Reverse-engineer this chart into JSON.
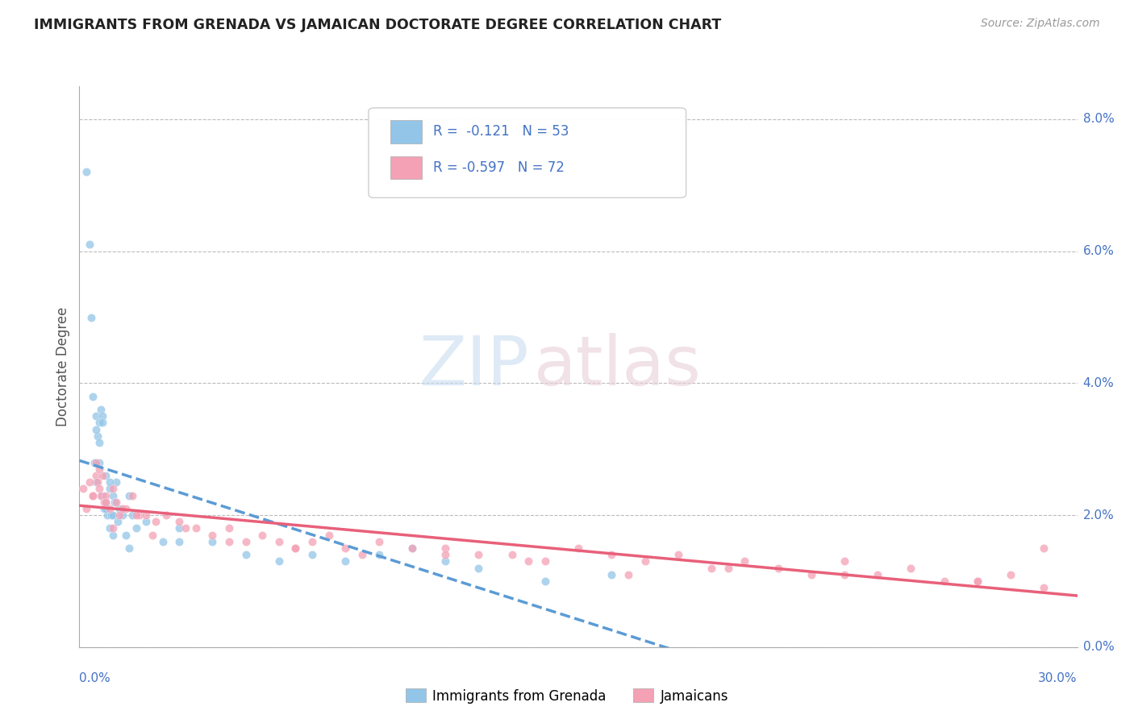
{
  "title": "IMMIGRANTS FROM GRENADA VS JAMAICAN DOCTORATE DEGREE CORRELATION CHART",
  "source": "Source: ZipAtlas.com",
  "ylabel": "Doctorate Degree",
  "color_blue": "#92C5E8",
  "color_pink": "#F4A0B5",
  "line_blue": "#5B9BD5",
  "line_pink": "#E8607A",
  "background_color": "#FFFFFF",
  "xlim": [
    0,
    30
  ],
  "ylim": [
    0,
    8.5
  ],
  "ytick_vals": [
    0.0,
    2.0,
    4.0,
    6.0,
    8.0
  ],
  "ytick_labels": [
    "0.0%",
    "2.0%",
    "4.0%",
    "6.0%",
    "8.0%"
  ],
  "grenada_x": [
    0.2,
    0.3,
    0.35,
    0.4,
    0.45,
    0.5,
    0.5,
    0.55,
    0.6,
    0.6,
    0.65,
    0.7,
    0.7,
    0.75,
    0.8,
    0.8,
    0.85,
    0.9,
    0.9,
    0.95,
    1.0,
    1.0,
    1.05,
    1.1,
    1.15,
    1.2,
    1.3,
    1.4,
    1.5,
    1.6,
    1.7,
    2.0,
    2.5,
    3.0,
    4.0,
    5.0,
    6.0,
    7.0,
    8.0,
    9.0,
    10.0,
    11.0,
    12.0,
    14.0,
    16.0,
    0.5,
    0.6,
    0.7,
    0.8,
    0.9,
    1.0,
    1.5,
    3.0
  ],
  "grenada_y": [
    7.2,
    6.1,
    5.0,
    3.8,
    2.8,
    3.5,
    2.5,
    3.2,
    3.4,
    2.8,
    3.6,
    2.3,
    3.5,
    2.1,
    2.6,
    2.2,
    2.0,
    2.4,
    1.8,
    2.0,
    2.3,
    1.7,
    2.2,
    2.5,
    1.9,
    2.1,
    2.0,
    1.7,
    2.3,
    2.0,
    1.8,
    1.9,
    1.6,
    1.8,
    1.6,
    1.4,
    1.3,
    1.4,
    1.3,
    1.4,
    1.5,
    1.3,
    1.2,
    1.0,
    1.1,
    3.3,
    3.1,
    3.4,
    2.1,
    2.5,
    2.0,
    1.5,
    1.6
  ],
  "jamaican_x": [
    0.1,
    0.2,
    0.3,
    0.4,
    0.5,
    0.5,
    0.55,
    0.6,
    0.65,
    0.7,
    0.75,
    0.8,
    0.9,
    1.0,
    1.1,
    1.2,
    1.4,
    1.6,
    1.8,
    2.0,
    2.3,
    2.6,
    3.0,
    3.5,
    4.0,
    4.5,
    5.0,
    5.5,
    6.0,
    6.5,
    7.0,
    7.5,
    8.0,
    9.0,
    10.0,
    11.0,
    12.0,
    13.0,
    14.0,
    15.0,
    16.0,
    17.0,
    18.0,
    19.0,
    20.0,
    21.0,
    22.0,
    23.0,
    24.0,
    25.0,
    26.0,
    27.0,
    28.0,
    29.0,
    0.4,
    0.6,
    0.8,
    1.0,
    1.3,
    1.7,
    2.2,
    3.2,
    4.5,
    6.5,
    8.5,
    11.0,
    13.5,
    16.5,
    19.5,
    23.0,
    27.0,
    29.0
  ],
  "jamaican_y": [
    2.4,
    2.1,
    2.5,
    2.3,
    2.8,
    2.6,
    2.5,
    2.4,
    2.3,
    2.6,
    2.2,
    2.3,
    2.1,
    2.4,
    2.2,
    2.0,
    2.1,
    2.3,
    2.0,
    2.0,
    1.9,
    2.0,
    1.9,
    1.8,
    1.7,
    1.8,
    1.6,
    1.7,
    1.6,
    1.5,
    1.6,
    1.7,
    1.5,
    1.6,
    1.5,
    1.5,
    1.4,
    1.4,
    1.3,
    1.5,
    1.4,
    1.3,
    1.4,
    1.2,
    1.3,
    1.2,
    1.1,
    1.3,
    1.1,
    1.2,
    1.0,
    1.0,
    1.1,
    0.9,
    2.3,
    2.7,
    2.2,
    1.8,
    2.1,
    2.0,
    1.7,
    1.8,
    1.6,
    1.5,
    1.4,
    1.4,
    1.3,
    1.1,
    1.2,
    1.1,
    1.0,
    1.5
  ]
}
